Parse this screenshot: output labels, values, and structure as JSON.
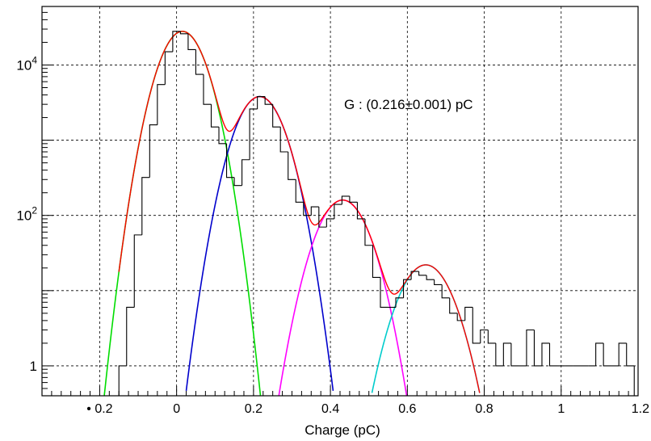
{
  "chart_data": {
    "type": "line",
    "title": "",
    "xlabel": "Charge (pC)",
    "ylabel": "",
    "xlim": [
      -0.35,
      1.2
    ],
    "ylim": [
      0.4,
      60000
    ],
    "y_scale": "log",
    "grid": true,
    "annotation": "G : (0.216±0.001) pC",
    "x_ticks": [
      {
        "value": -0.2,
        "label": "• 0.2"
      },
      {
        "value": 0,
        "label": "0"
      },
      {
        "value": 0.2,
        "label": "0.2"
      },
      {
        "value": 0.4,
        "label": "0.4"
      },
      {
        "value": 0.6,
        "label": "0.6"
      },
      {
        "value": 0.8,
        "label": "0.8"
      },
      {
        "value": 1.0,
        "label": "1"
      },
      {
        "value": 1.2,
        "label": "1.2"
      }
    ],
    "y_ticks": [
      {
        "value": 1,
        "base": "1",
        "exp": ""
      },
      {
        "value": 100,
        "base": "10",
        "exp": "2"
      },
      {
        "value": 10000,
        "base": "10",
        "exp": "4"
      }
    ],
    "colors": {
      "histogram": "#000000",
      "total_fit": "#ff0000",
      "peak0": "#00dd00",
      "peak1": "#0000cc",
      "peak2": "#ff00ff",
      "peak3": "#00cccc",
      "grid": "#000000"
    },
    "histogram": {
      "x": [
        -0.14,
        -0.12,
        -0.1,
        -0.08,
        -0.06,
        -0.04,
        -0.02,
        0.0,
        0.02,
        0.04,
        0.06,
        0.08,
        0.1,
        0.12,
        0.14,
        0.16,
        0.18,
        0.2,
        0.22,
        0.24,
        0.26,
        0.28,
        0.3,
        0.32,
        0.34,
        0.36,
        0.38,
        0.4,
        0.42,
        0.44,
        0.46,
        0.48,
        0.5,
        0.52,
        0.54,
        0.56,
        0.58,
        0.6,
        0.62,
        0.64,
        0.66,
        0.68,
        0.7,
        0.72,
        0.74,
        0.76,
        0.78,
        0.8,
        0.82,
        0.84,
        0.86,
        0.88,
        0.9,
        0.92,
        0.94,
        0.96,
        0.98,
        1.0,
        1.02,
        1.04,
        1.06,
        1.08,
        1.1,
        1.12,
        1.14,
        1.16,
        1.18
      ],
      "counts": [
        1,
        6,
        55,
        320,
        1600,
        5500,
        15000,
        28000,
        26000,
        16000,
        7500,
        3000,
        1500,
        900,
        320,
        250,
        550,
        2600,
        3800,
        3000,
        1500,
        700,
        300,
        150,
        100,
        130,
        70,
        90,
        140,
        180,
        150,
        90,
        40,
        15,
        6,
        6,
        8,
        14,
        18,
        16,
        14,
        12,
        8,
        5,
        4,
        6,
        2,
        3,
        2,
        1,
        2,
        1,
        1,
        3,
        1,
        2,
        1,
        1,
        1,
        1,
        1,
        1,
        2,
        1,
        1,
        2,
        1
      ]
    },
    "fit_peaks": [
      {
        "mean": 0.015,
        "sigma": 0.043,
        "amplitude": 28000
      },
      {
        "mean": 0.216,
        "sigma": 0.045,
        "amplitude": 3800
      },
      {
        "mean": 0.432,
        "sigma": 0.048,
        "amplitude": 160
      },
      {
        "mean": 0.648,
        "sigma": 0.05,
        "amplitude": 22
      }
    ]
  }
}
